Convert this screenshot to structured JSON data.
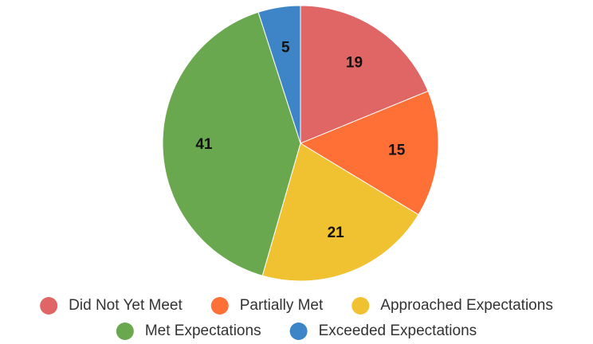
{
  "chart_data": {
    "type": "pie",
    "labels": [
      "Did Not Yet Meet",
      "Partially Met",
      "Approached Expectations",
      "Met Expectations",
      "Exceeded Expectations"
    ],
    "values": [
      19,
      15,
      21,
      41,
      5
    ],
    "colors": [
      "#e06666",
      "#fe7035",
      "#f0c232",
      "#6aa84f",
      "#3d85c6"
    ],
    "data_labels": [
      "19",
      "15",
      "21",
      "41",
      "5"
    ],
    "legend_position": "bottom",
    "title": ""
  }
}
